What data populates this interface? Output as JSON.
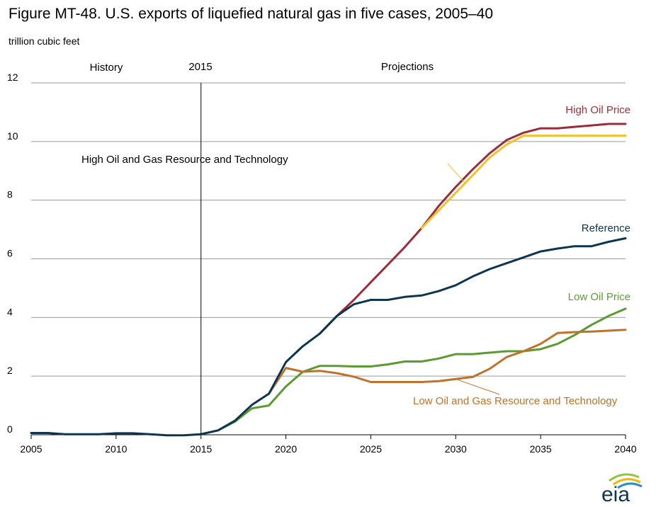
{
  "title": "Figure MT-48. U.S. exports of liquefied natural gas in five cases, 2005–40",
  "units_label": "trillion cubic feet",
  "logo_text": "eia",
  "annotations": {
    "history": "History",
    "year_divider": "2015",
    "projections": "Projections"
  },
  "colors": {
    "high_oil_price": "#9b2d3a",
    "high_resource": "#f2c12e",
    "reference": "#0d3550",
    "low_oil_price": "#5b9a32",
    "low_resource": "#c0722a",
    "grid": "#999999"
  },
  "chart_data": {
    "type": "line",
    "xlim": [
      2005,
      2040
    ],
    "ylim": [
      0,
      12
    ],
    "x_ticks": [
      2005,
      2010,
      2015,
      2020,
      2025,
      2030,
      2035,
      2040
    ],
    "y_ticks": [
      0,
      2,
      4,
      6,
      8,
      10,
      12
    ],
    "grid": "horizontal",
    "divider_year": 2015,
    "series": [
      {
        "key": "high_oil_price",
        "name": "High Oil Price",
        "x": [
          2022,
          2023,
          2024,
          2025,
          2026,
          2027,
          2028,
          2029,
          2030,
          2031,
          2032,
          2033,
          2034,
          2035,
          2036,
          2037,
          2038,
          2039,
          2040
        ],
        "y": [
          3.45,
          4.05,
          4.6,
          5.2,
          5.8,
          6.4,
          7.05,
          7.8,
          8.45,
          9.05,
          9.6,
          10.05,
          10.3,
          10.45,
          10.45,
          10.5,
          10.55,
          10.6,
          10.6
        ]
      },
      {
        "key": "high_resource",
        "name": "High Oil and Gas Resource and Technology",
        "x": [
          2028,
          2029,
          2030,
          2031,
          2032,
          2033,
          2034,
          2035,
          2036,
          2037,
          2038,
          2039,
          2040
        ],
        "y": [
          7.05,
          7.65,
          8.25,
          8.85,
          9.45,
          9.9,
          10.2,
          10.2,
          10.2,
          10.2,
          10.2,
          10.2,
          10.2
        ]
      },
      {
        "key": "low_oil_price",
        "name": "Low Oil Price",
        "x": [
          2015,
          2016,
          2017,
          2018,
          2019,
          2020,
          2021,
          2022,
          2023,
          2024,
          2025,
          2026,
          2027,
          2028,
          2029,
          2030,
          2031,
          2032,
          2033,
          2034,
          2035,
          2036,
          2037,
          2038,
          2039,
          2040
        ],
        "y": [
          0.02,
          0.15,
          0.45,
          0.9,
          1.0,
          1.65,
          2.15,
          2.35,
          2.35,
          2.33,
          2.33,
          2.4,
          2.5,
          2.5,
          2.6,
          2.75,
          2.75,
          2.8,
          2.85,
          2.85,
          2.92,
          3.1,
          3.4,
          3.75,
          4.05,
          4.3
        ]
      },
      {
        "key": "low_resource",
        "name": "Low Oil and Gas Resource and Technology",
        "x": [
          2019,
          2020,
          2021,
          2022,
          2023,
          2024,
          2025,
          2026,
          2027,
          2028,
          2029,
          2030,
          2031,
          2032,
          2033,
          2034,
          2035,
          2036,
          2037,
          2038,
          2039,
          2040
        ],
        "y": [
          1.4,
          2.28,
          2.15,
          2.18,
          2.1,
          1.98,
          1.8,
          1.8,
          1.8,
          1.8,
          1.83,
          1.9,
          1.97,
          2.25,
          2.65,
          2.85,
          3.1,
          3.47,
          3.5,
          3.52,
          3.55,
          3.58
        ]
      },
      {
        "key": "reference",
        "name": "Reference",
        "x": [
          2005,
          2006,
          2007,
          2008,
          2009,
          2010,
          2011,
          2012,
          2013,
          2014,
          2015,
          2016,
          2017,
          2018,
          2019,
          2020,
          2021,
          2022,
          2023,
          2024,
          2025,
          2026,
          2027,
          2028,
          2029,
          2030,
          2031,
          2032,
          2033,
          2034,
          2035,
          2036,
          2037,
          2038,
          2039,
          2040
        ],
        "y": [
          0.06,
          0.06,
          0.02,
          0.02,
          0.02,
          0.05,
          0.05,
          0.02,
          -0.02,
          -0.02,
          0.02,
          0.15,
          0.48,
          1.02,
          1.4,
          2.48,
          3.02,
          3.45,
          4.05,
          4.45,
          4.6,
          4.6,
          4.7,
          4.75,
          4.9,
          5.1,
          5.4,
          5.65,
          5.85,
          6.05,
          6.25,
          6.35,
          6.43,
          6.43,
          6.58,
          6.7
        ]
      }
    ]
  }
}
